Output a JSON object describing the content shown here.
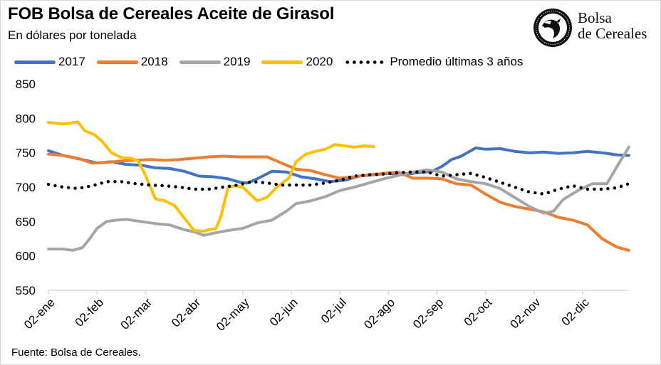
{
  "header": {
    "title": "FOB Bolsa de Cereales Aceite de Girasol",
    "subtitle": "En dólares por tonelada"
  },
  "logo": {
    "line1": "Bolsa",
    "line2": "de Cereales",
    "icon": "bolsa-de-cereales-seal-icon"
  },
  "footer": {
    "source": "Fuente: Bolsa de Cereales."
  },
  "chart_data": {
    "type": "line",
    "title": "FOB Bolsa de Cereales Aceite de Girasol",
    "subtitle": "En dólares por tonelada",
    "xlabel": "",
    "ylabel": "",
    "ylim": [
      550,
      850
    ],
    "yticks": [
      550,
      600,
      650,
      700,
      750,
      800,
      850
    ],
    "x_unit": "month index (0 = 02-ene)",
    "xlim": [
      0,
      11.95
    ],
    "xtick_labels": [
      "02-ene",
      "02-feb",
      "02-mar",
      "02-abr",
      "02-may",
      "02-jun",
      "02-jul",
      "02-ago",
      "02-sep",
      "02-oct",
      "02-nov",
      "02-dic"
    ],
    "grid": false,
    "legend_position": "top",
    "series": [
      {
        "name": "2017",
        "color": "#4472C4",
        "style": "solid",
        "x": [
          0,
          0.3,
          0.7,
          1.0,
          1.3,
          1.6,
          1.9,
          2.2,
          2.5,
          2.8,
          3.1,
          3.4,
          3.7,
          3.95,
          4.1,
          4.3,
          4.6,
          4.9,
          5.2,
          5.5,
          5.8,
          6.1,
          6.4,
          6.7,
          7.0,
          7.3,
          7.6,
          7.9,
          8.1,
          8.3,
          8.5,
          8.8,
          9.0,
          9.3,
          9.6,
          9.9,
          10.2,
          10.5,
          10.8,
          11.1,
          11.4,
          11.7,
          11.95
        ],
        "values": [
          753,
          746,
          740,
          735,
          737,
          733,
          732,
          728,
          727,
          723,
          716,
          715,
          712,
          707,
          706,
          712,
          723,
          722,
          715,
          712,
          708,
          710,
          716,
          718,
          720,
          718,
          721,
          723,
          730,
          740,
          745,
          757,
          755,
          756,
          752,
          750,
          751,
          749,
          750,
          752,
          750,
          747,
          746
        ]
      },
      {
        "name": "2018",
        "color": "#ED7D31",
        "style": "solid",
        "x": [
          0,
          0.3,
          0.6,
          0.9,
          1.2,
          1.5,
          1.8,
          2.1,
          2.4,
          2.7,
          3.0,
          3.3,
          3.6,
          3.9,
          4.2,
          4.5,
          4.8,
          5.1,
          5.4,
          5.7,
          6.0,
          6.3,
          6.6,
          6.9,
          7.2,
          7.5,
          7.8,
          8.1,
          8.4,
          8.7,
          9.0,
          9.3,
          9.6,
          9.9,
          10.2,
          10.5,
          10.8,
          11.1,
          11.4,
          11.7,
          11.95
        ],
        "values": [
          748,
          746,
          742,
          735,
          736,
          738,
          739,
          740,
          739,
          740,
          742,
          744,
          745,
          744,
          744,
          744,
          735,
          726,
          724,
          718,
          713,
          715,
          718,
          720,
          722,
          713,
          713,
          712,
          705,
          703,
          690,
          678,
          672,
          668,
          664,
          656,
          652,
          645,
          625,
          613,
          608
        ]
      },
      {
        "name": "2019",
        "color": "#A5A5A5",
        "style": "solid",
        "x": [
          0,
          0.3,
          0.5,
          0.7,
          0.85,
          1.0,
          1.2,
          1.4,
          1.6,
          1.9,
          2.2,
          2.5,
          2.8,
          3.0,
          3.2,
          3.4,
          3.7,
          4.0,
          4.3,
          4.6,
          4.9,
          5.1,
          5.4,
          5.7,
          6.0,
          6.3,
          6.6,
          6.9,
          7.2,
          7.5,
          7.8,
          8.1,
          8.4,
          8.7,
          9.0,
          9.3,
          9.6,
          9.9,
          10.2,
          10.4,
          10.6,
          10.9,
          11.2,
          11.5,
          11.75,
          11.95
        ],
        "values": [
          610,
          610,
          608,
          612,
          625,
          640,
          650,
          652,
          653,
          650,
          647,
          645,
          638,
          635,
          630,
          633,
          637,
          640,
          648,
          652,
          665,
          676,
          680,
          686,
          695,
          700,
          706,
          712,
          717,
          722,
          725,
          722,
          712,
          708,
          705,
          698,
          685,
          672,
          662,
          665,
          682,
          695,
          705,
          705,
          735,
          758
        ]
      },
      {
        "name": "2020",
        "color": "#FFC000",
        "style": "solid",
        "x": [
          0,
          0.3,
          0.45,
          0.6,
          0.75,
          0.95,
          1.1,
          1.3,
          1.5,
          1.7,
          1.85,
          2.0,
          2.2,
          2.4,
          2.6,
          2.8,
          3.0,
          3.2,
          3.3,
          3.45,
          3.55,
          3.7,
          3.85,
          4.0,
          4.15,
          4.3,
          4.5,
          4.7,
          4.95,
          5.1,
          5.3,
          5.5,
          5.7,
          5.9,
          6.1,
          6.3,
          6.5,
          6.7
        ],
        "values": [
          794,
          792,
          793,
          795,
          782,
          776,
          767,
          750,
          743,
          742,
          738,
          717,
          683,
          680,
          673,
          655,
          637,
          636,
          638,
          640,
          657,
          700,
          702,
          700,
          690,
          680,
          685,
          700,
          713,
          737,
          748,
          752,
          755,
          762,
          760,
          758,
          760,
          759
        ]
      },
      {
        "name": "Promedio últimas 3 años",
        "color": "#000000",
        "style": "dotted",
        "x": [
          0,
          0.3,
          0.6,
          0.9,
          1.2,
          1.5,
          1.8,
          2.1,
          2.4,
          2.7,
          3.0,
          3.3,
          3.6,
          3.9,
          4.2,
          4.5,
          4.8,
          5.1,
          5.4,
          5.7,
          6.0,
          6.3,
          6.6,
          6.9,
          7.2,
          7.5,
          7.8,
          8.1,
          8.4,
          8.7,
          9.0,
          9.3,
          9.6,
          9.9,
          10.2,
          10.5,
          10.8,
          11.1,
          11.4,
          11.7,
          11.95
        ],
        "values": [
          704,
          700,
          698,
          702,
          708,
          708,
          705,
          703,
          702,
          700,
          697,
          697,
          700,
          703,
          708,
          706,
          703,
          703,
          703,
          706,
          710,
          716,
          718,
          719,
          721,
          722,
          722,
          716,
          718,
          720,
          714,
          707,
          700,
          693,
          690,
          697,
          702,
          697,
          697,
          699,
          705
        ]
      }
    ]
  }
}
